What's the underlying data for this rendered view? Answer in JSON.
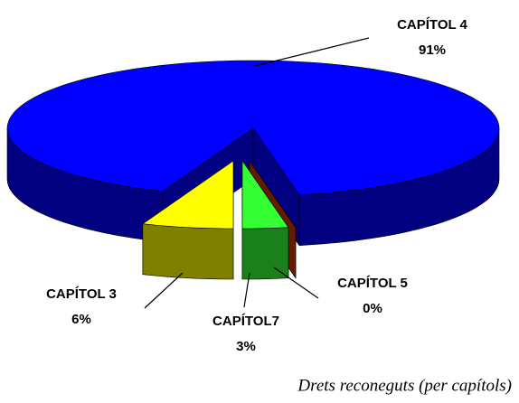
{
  "chart_data": {
    "type": "pie3d",
    "title": "Drets reconeguts (per capítols)",
    "categories": [
      "CAPÍTOL 4",
      "CAPÍTOL 3",
      "CAPÍTOL7",
      "CAPÍTOL 5"
    ],
    "values": [
      91,
      6,
      3,
      0
    ],
    "value_labels": [
      "91%",
      "6%",
      "3%",
      "0%"
    ],
    "colors": [
      "#0000ff",
      "#ffff00",
      "#33ff33",
      "#cc3300"
    ]
  }
}
